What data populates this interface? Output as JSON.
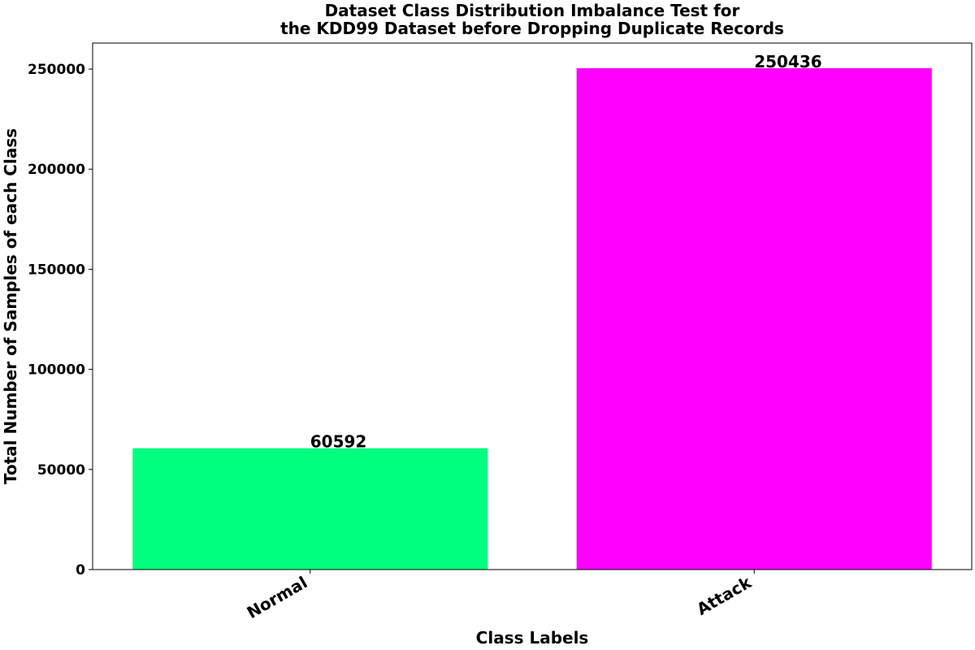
{
  "chart_data": {
    "type": "bar",
    "title_lines": [
      "Dataset Class Distribution Imbalance Test for",
      "the KDD99 Dataset before Dropping Duplicate Records"
    ],
    "xlabel": "Class Labels",
    "ylabel": "Total Number of Samples of each Class",
    "categories": [
      "Normal",
      "Attack"
    ],
    "values": [
      60592,
      250436
    ],
    "data_labels": [
      "60592",
      "250436"
    ],
    "colors": [
      "#00ff7f",
      "#ff00ff"
    ],
    "ylim": [
      0,
      263000
    ],
    "yticks": [
      0,
      50000,
      100000,
      150000,
      200000,
      250000
    ],
    "ytick_labels": [
      "0",
      "50000",
      "100000",
      "150000",
      "200000",
      "250000"
    ],
    "grid": false,
    "legend": "none"
  }
}
